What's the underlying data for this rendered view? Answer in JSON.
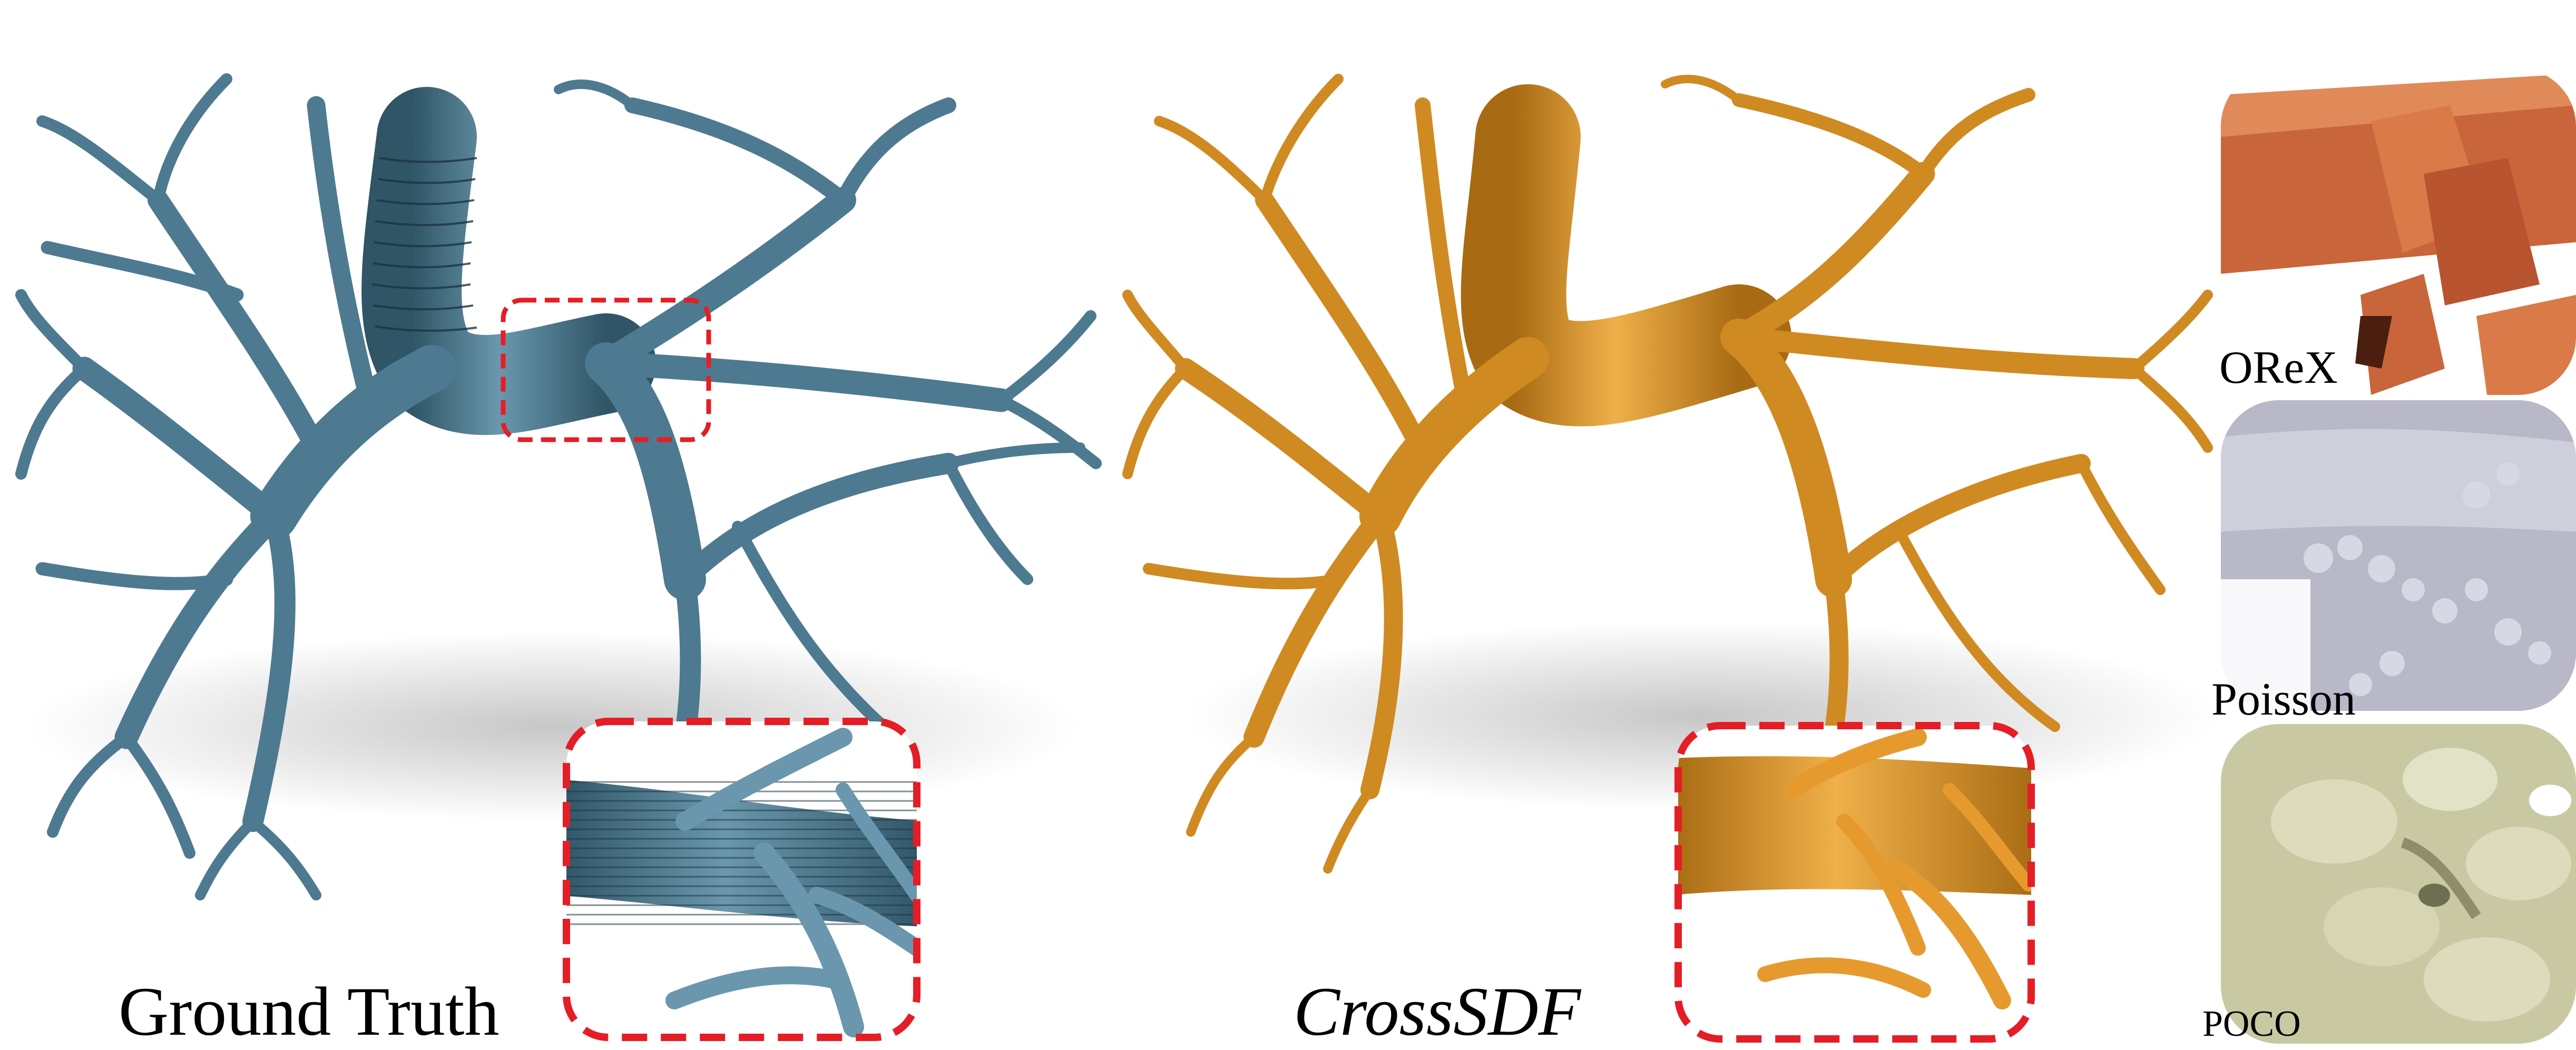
{
  "figure": {
    "captions": {
      "ground_truth": "Ground Truth",
      "crosssdf": "CrossSDF",
      "orex": "OReX",
      "poisson": "Poisson",
      "poco": "POCO"
    },
    "colors": {
      "ground_truth_mesh": "#4d7a90",
      "ground_truth_dark": "#2c4a5a",
      "crosssdf_mesh": "#d08a22",
      "crosssdf_dark": "#8a5a12",
      "orex_mesh": "#c9653a",
      "poisson_mesh": "#b8b8c8",
      "poco_mesh": "#c8c8a2",
      "highlight_box": "#e41e26"
    }
  }
}
